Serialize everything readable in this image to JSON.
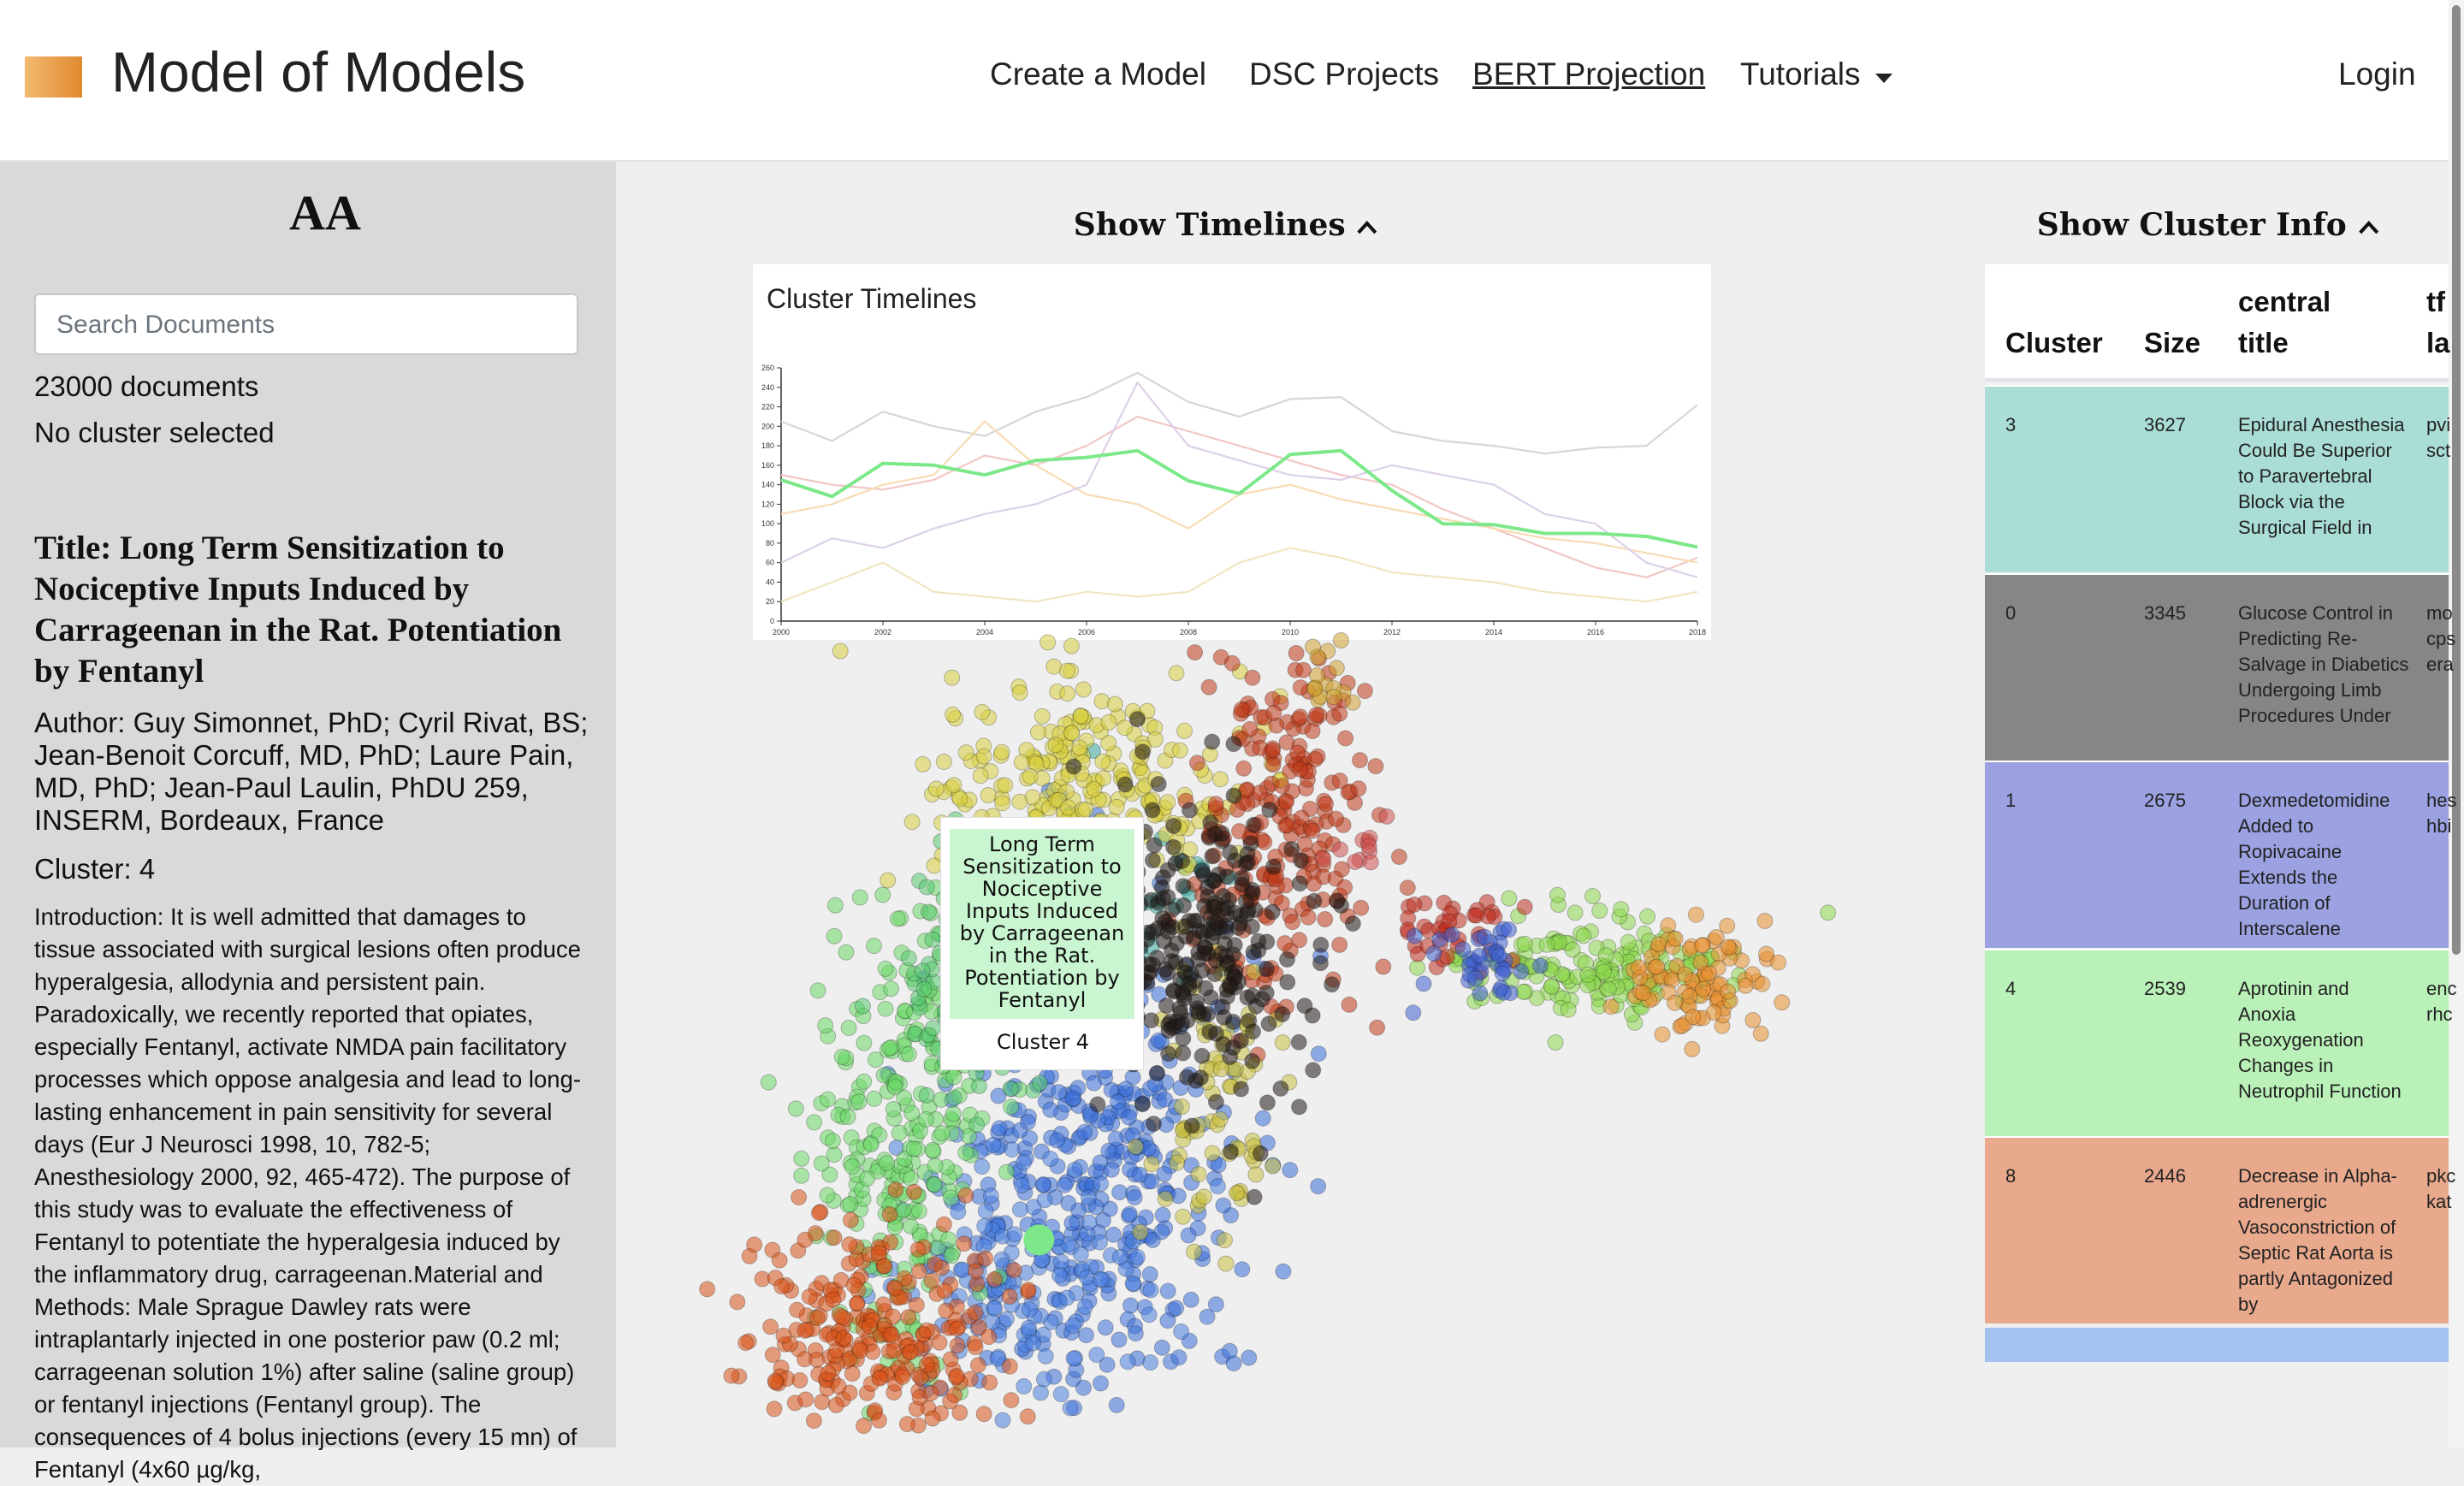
{
  "header": {
    "brand": "Model of Models",
    "nav": [
      "Create a Model",
      "DSC Projects",
      "BERT Projection",
      "Tutorials"
    ],
    "login": "Login"
  },
  "sidebar": {
    "heading": "AA",
    "search_placeholder": "Search Documents",
    "doc_count": "23000 documents",
    "selection": "No cluster selected",
    "title": "Title: Long Term Sensitization to Nociceptive Inputs Induced by Carrageenan in the Rat. Potentiation by Fentanyl",
    "author": "Author: Guy Simonnet, PhD; Cyril Rivat, BS; Jean-Benoit Corcuff, MD, PhD; Laure Pain, MD, PhD; Jean-Paul Laulin, PhDU 259, INSERM, Bordeaux, France",
    "cluster": "Cluster: 4",
    "abstract": "Introduction: It is well admitted that damages to tissue associated with surgical lesions often produce hyperalgesia, allodynia and persistent pain. Paradoxically, we recently reported that opiates, especially Fentanyl, activate NMDA pain facilitatory processes which oppose analgesia and lead to long-lasting enhancement in pain sensitivity for several days (Eur J Neurosci 1998, 10, 782-5; Anesthesiology 2000, 92, 465-472). The purpose of this study was to evaluate the effectiveness of Fentanyl to potentiate the hyperalgesia induced by the inflammatory drug, carrageenan.Material and Methods: Male Sprague Dawley rats were intraplantarly injected in one posterior paw (0.2 ml; carrageenan solution 1%) after saline (saline group) or fentanyl injections (Fentanyl group). The consequences of 4 bolus injections (every 15 mn) of Fentanyl (4x60 µg/kg,"
  },
  "timelines_toggle": "Show Timelines",
  "chart_data": {
    "type": "line",
    "title": "Cluster Timelines",
    "x": [
      2000,
      2001,
      2002,
      2003,
      2004,
      2005,
      2006,
      2007,
      2008,
      2009,
      2010,
      2011,
      2012,
      2013,
      2014,
      2015,
      2016,
      2017,
      2018
    ],
    "xlim": [
      2000,
      2018
    ],
    "xticks": [
      2000,
      2002,
      2004,
      2006,
      2008,
      2010,
      2012,
      2014,
      2016,
      2018
    ],
    "ylim": [
      0,
      260
    ],
    "yticks": [
      0,
      20,
      40,
      60,
      80,
      100,
      120,
      140,
      160,
      180,
      200,
      220,
      240,
      260
    ],
    "series": [
      {
        "color": "#d6d6d6",
        "values": [
          205,
          185,
          215,
          200,
          190,
          215,
          230,
          255,
          225,
          210,
          228,
          230,
          195,
          185,
          180,
          172,
          178,
          180,
          222
        ]
      },
      {
        "color": "#f2c6c6",
        "values": [
          150,
          140,
          135,
          145,
          170,
          160,
          180,
          210,
          195,
          180,
          165,
          150,
          140,
          115,
          95,
          75,
          55,
          45,
          65
        ]
      },
      {
        "color": "#f7dcb4",
        "values": [
          110,
          120,
          140,
          150,
          205,
          160,
          130,
          120,
          95,
          130,
          140,
          125,
          115,
          105,
          95,
          85,
          80,
          70,
          60
        ]
      },
      {
        "color": "#efe6c0",
        "values": [
          20,
          40,
          60,
          30,
          25,
          20,
          30,
          25,
          30,
          60,
          75,
          65,
          50,
          45,
          40,
          30,
          25,
          20,
          30
        ]
      },
      {
        "color": "#ddd0e8",
        "values": [
          60,
          85,
          75,
          95,
          110,
          120,
          140,
          245,
          180,
          165,
          150,
          145,
          160,
          150,
          140,
          110,
          100,
          60,
          45
        ]
      },
      {
        "color": "#7de88a",
        "values": [
          145,
          128,
          162,
          160,
          150,
          165,
          168,
          175,
          144,
          131,
          171,
          175,
          134,
          100,
          99,
          90,
          90,
          87,
          76
        ]
      }
    ]
  },
  "tooltip": {
    "title": "Long Term Sensitization to Nociceptive Inputs Induced by Carrageenan in the Rat. Potentiation by Fentanyl",
    "cluster": "Cluster 4"
  },
  "cluster_toggle": "Show Cluster Info",
  "table": {
    "headers": [
      "Cluster",
      "Size",
      "central title",
      "tf la"
    ],
    "rows": [
      {
        "cluster": 3,
        "size": 3627,
        "title": "Epidural Anesthesia Could Be Superior to Paravertebral Block via the Surgical Field in",
        "labels": "pvi sct",
        "color": "#a9ddd5"
      },
      {
        "cluster": 0,
        "size": 3345,
        "title": "Glucose Control in Predicting Re-Salvage in Diabetics Undergoing Limb Procedures Under",
        "labels": "mo cps era",
        "color": "#888585"
      },
      {
        "cluster": 1,
        "size": 2675,
        "title": "Dexmedetomidine Added to Ropivacaine Extends the Duration of Interscalene",
        "labels": "hes hbi",
        "color": "#9ba1e1"
      },
      {
        "cluster": 4,
        "size": 2539,
        "title": "Aprotinin and Anoxia Reoxygenation Changes in Neutrophil Function",
        "labels": "enc rhc",
        "color": "#b9f1b9"
      },
      {
        "cluster": 8,
        "size": 2446,
        "title": "Decrease in Alpha-adrenergic Vasoconstriction of Septic Rat Aorta is partly Antagonized by",
        "labels": "pkc kat",
        "color": "#e8a98d"
      }
    ]
  }
}
